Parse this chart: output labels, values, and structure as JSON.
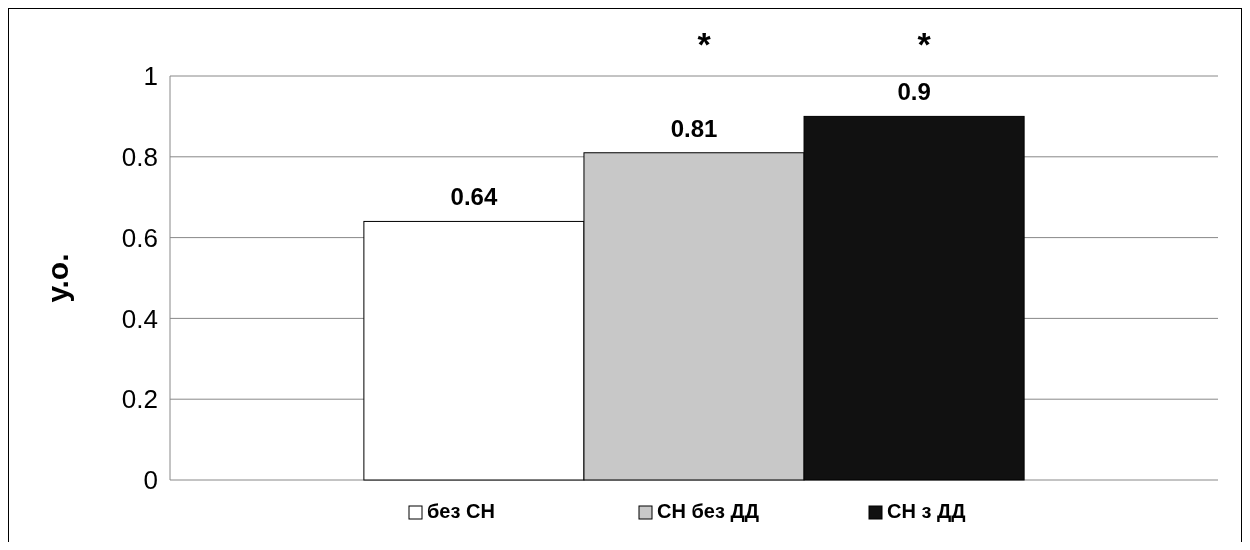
{
  "chart_data": {
    "type": "bar",
    "ylabel": "у.о.",
    "categories": [
      null
    ],
    "series": [
      {
        "name": "без СН",
        "color": "#ffffff",
        "values": [
          0.64
        ]
      },
      {
        "name": "СН без ДД",
        "color": "#c8c8c8",
        "values": [
          0.81
        ]
      },
      {
        "name": "СН з ДД",
        "color": "#111111",
        "values": [
          0.9
        ]
      }
    ],
    "ylim": [
      0,
      1
    ],
    "yticks": [
      0,
      0.2,
      0.4,
      0.6,
      0.8,
      1
    ],
    "grid": "y",
    "legend": "bottom",
    "data_labels": true,
    "annotations": [
      "*",
      "*"
    ]
  }
}
